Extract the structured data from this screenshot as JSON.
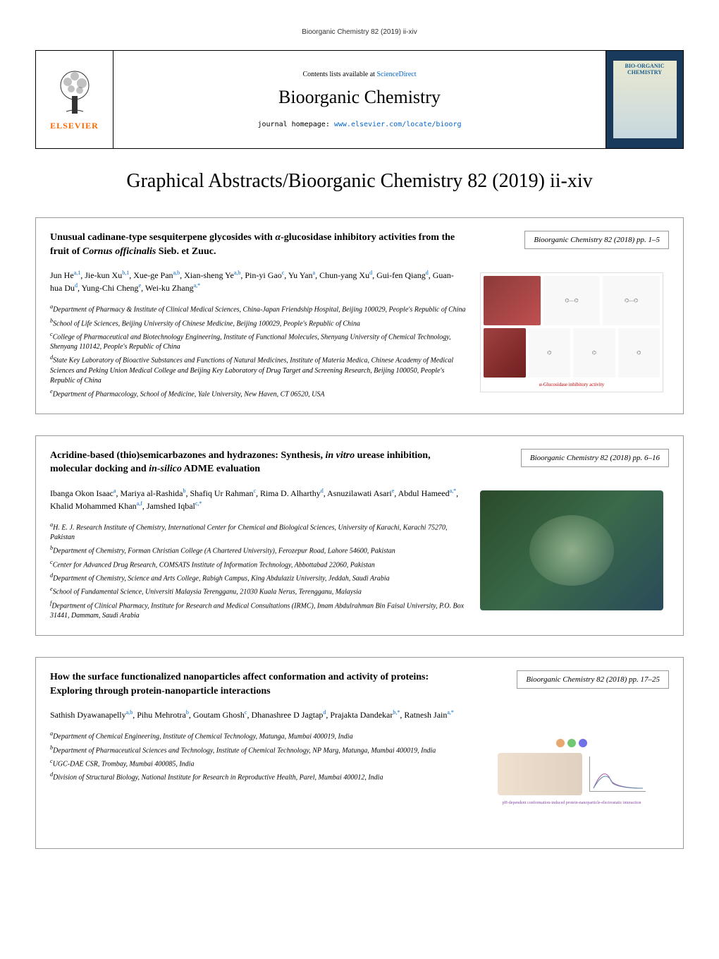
{
  "running_header": "Bioorganic Chemistry 82 (2019) ii-xiv",
  "header": {
    "contents_prefix": "Contents lists available at ",
    "contents_link": "ScienceDirect",
    "journal_name": "Bioorganic Chemistry",
    "homepage_prefix": "journal homepage: ",
    "homepage_link": "www.elsevier.com/locate/bioorg",
    "publisher_text": "ELSEVIER",
    "cover_text": "BIO-ORGANIC CHEMISTRY"
  },
  "main_title": "Graphical Abstracts/Bioorganic Chemistry 82 (2019) ii-xiv",
  "abstracts": [
    {
      "title_html": "Unusual cadinane-type sesquiterpene glycosides with <i>α</i>-glucosidase inhibitory activities from the fruit of <i>Cornus officinalis</i> Sieb. et Zuuc.",
      "page_ref": "Bioorganic Chemistry 82 (2018) pp. 1–5",
      "authors_html": "Jun He<span class='sup'>a,1</span>, Jie-kun Xu<span class='sup'>b,1</span>, Xue-ge Pan<span class='sup'>a,b</span>, Xian-sheng Ye<span class='sup'>a,b</span>, Pin-yi Gao<span class='sup'>c</span>, Yu Yan<span class='sup'>a</span>, Chun-yang Xu<span class='sup'>d</span>, Gui-fen Qiang<span class='sup'>d</span>, Guan-hua Du<span class='sup'>d</span>, Yung-Chi Cheng<span class='sup'>e</span>, Wei-ku Zhang<span class='sup'>a,*</span>",
      "affiliations": [
        {
          "sup": "a",
          "text": "Department of Pharmacy & Institute of Clinical Medical Sciences, China-Japan Friendship Hospital, Beijing 100029, People's Republic of China"
        },
        {
          "sup": "b",
          "text": "School of Life Sciences, Beijing University of Chinese Medicine, Beijing 100029, People's Republic of China"
        },
        {
          "sup": "c",
          "text": "College of Pharmaceutical and Biotechnology Engineering, Institute of Functional Molecules, Shenyang University of Chemical Technology, Shenyang 110142, People's Republic of China"
        },
        {
          "sup": "d",
          "text": "State Key Laboratory of Bioactive Substances and Functions of Natural Medicines, Institute of Materia Medica, Chinese Academy of Medical Sciences and Peking Union Medical College and Beijing Key Laboratory of Drug Target and Screening Research, Beijing 100050, People's Republic of China"
        },
        {
          "sup": "e",
          "text": "Department of Pharmacology, School of Medicine, Yale University, New Haven, CT 06520, USA"
        }
      ],
      "image_caption": "α-Glucosidase inhibitory activity"
    },
    {
      "title_html": "Acridine-based (thio)semicarbazones and hydrazones: Synthesis, <i>in vitro</i> urease inhibition, molecular docking and <i>in-silico</i> ADME evaluation",
      "page_ref": "Bioorganic Chemistry 82 (2018) pp. 6–16",
      "authors_html": "Ibanga Okon Isaac<span class='sup'>a</span>, Mariya al-Rashida<span class='sup'>b</span>, Shafiq Ur Rahman<span class='sup'>c</span>, Rima D. Alharthy<span class='sup'>d</span>, Asnuzilawati Asari<span class='sup'>e</span>, Abdul Hameed<span class='sup'>a,*</span>, Khalid Mohammed Khan<span class='sup'>a,f</span>, Jamshed Iqbal<span class='sup'>c,*</span>",
      "affiliations": [
        {
          "sup": "a",
          "text": "H. E. J. Research Institute of Chemistry, International Center for Chemical and Biological Sciences, University of Karachi, Karachi 75270, Pakistan"
        },
        {
          "sup": "b",
          "text": "Department of Chemistry, Forman Christian College (A Chartered University), Ferozepur Road, Lahore 54600, Pakistan"
        },
        {
          "sup": "c",
          "text": "Center for Advanced Drug Research, COMSATS Institute of Information Technology, Abbottabad 22060, Pakistan"
        },
        {
          "sup": "d",
          "text": "Department of Chemistry, Science and Arts College, Rabigh Campus, King Abdulaziz University, Jeddah, Saudi Arabia"
        },
        {
          "sup": "e",
          "text": "School of Fundamental Science, Universiti Malaysia Terengganu, 21030 Kuala Nerus, Terengganu, Malaysia"
        },
        {
          "sup": "f",
          "text": "Department of Clinical Pharmacy, Institute for Research and Medical Consultations (IRMC), Imam Abdulrahman Bin Faisal University, P.O. Box 31441, Dammam, Saudi Arabia"
        }
      ]
    },
    {
      "title_html": "How the surface functionalized nanoparticles affect conformation and activity of proteins: Exploring through protein-nanoparticle interactions",
      "page_ref": "Bioorganic Chemistry 82 (2018) pp. 17–25",
      "authors_html": "Sathish Dyawanapelly<span class='sup'>a,b</span>, Pihu Mehrotra<span class='sup'>b</span>, Goutam Ghosh<span class='sup'>c</span>, Dhanashree D Jagtap<span class='sup'>d</span>, Prajakta Dandekar<span class='sup'>b,*</span>, Ratnesh Jain<span class='sup'>a,*</span>",
      "affiliations": [
        {
          "sup": "a",
          "text": "Department of Chemical Engineering, Institute of Chemical Technology, Matunga, Mumbai 400019, India"
        },
        {
          "sup": "b",
          "text": "Department of Pharmaceutical Sciences and Technology, Institute of Chemical Technology, NP Marg, Matunga, Mumbai 400019, India"
        },
        {
          "sup": "c",
          "text": "UGC-DAE CSR, Trombay, Mumbai 400085, India"
        },
        {
          "sup": "d",
          "text": "Division of Structural Biology, National Institute for Research in Reproductive Health, Parel, Mumbai 400012, India"
        }
      ],
      "image_caption": "pH-dependent conformation-induced protein-nanoparticle-electrostatic interaction"
    }
  ],
  "colors": {
    "link": "#0066cc",
    "publisher": "#ff6600",
    "border": "#999999",
    "text": "#000000"
  }
}
